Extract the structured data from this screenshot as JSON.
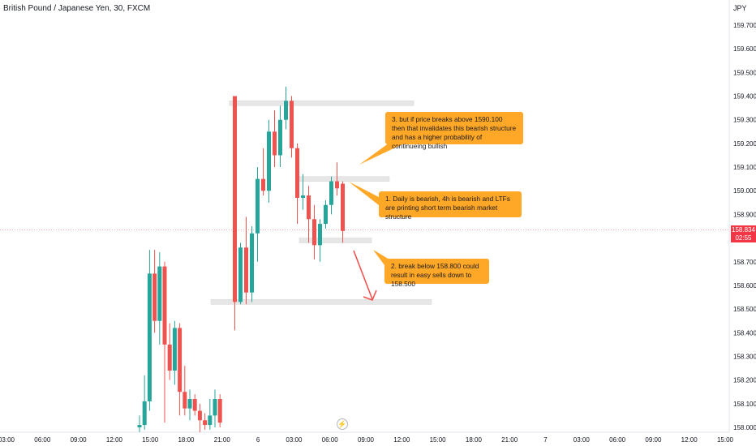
{
  "header": {
    "title": "British Pound / Japanese Yen, 30, FXCM"
  },
  "colors": {
    "up": "#26a69a",
    "down": "#ef5350",
    "zone": "#e6e6e6",
    "note": "#ffa726",
    "price_line": "#f23645",
    "arrow": "#ef5350"
  },
  "icons": {
    "replay": "lightning-bolt-icon"
  },
  "chart_data": {
    "type": "candlestick",
    "title": "British Pound / Japanese Yen, 30, FXCM",
    "y_unit": "JPY",
    "ylim": [
      157.99,
      159.83
    ],
    "y_ticks": [
      "159.700",
      "159.600",
      "159.500",
      "159.400",
      "159.300",
      "159.200",
      "159.100",
      "159.000",
      "158.900",
      "158.800",
      "158.700",
      "158.600",
      "158.500",
      "158.400",
      "158.300",
      "158.200",
      "158.100",
      "158.000"
    ],
    "x_ticks": [
      "03:00",
      "06:00",
      "09:00",
      "12:00",
      "15:00",
      "18:00",
      "21:00",
      "6",
      "03:00",
      "06:00",
      "09:00",
      "12:00",
      "15:00",
      "18:00",
      "21:00",
      "7",
      "03:00",
      "06:00",
      "09:00",
      "12:00",
      "15:00"
    ],
    "candles": [
      {
        "time": "14:00",
        "open": 158.0,
        "high": 158.05,
        "low": 157.98,
        "close": 158.01
      },
      {
        "time": "14:30",
        "open": 158.01,
        "high": 158.22,
        "low": 157.99,
        "close": 158.11
      },
      {
        "time": "15:00",
        "open": 158.11,
        "high": 158.75,
        "low": 158.07,
        "close": 158.65
      },
      {
        "time": "15:30",
        "open": 158.65,
        "high": 158.75,
        "low": 158.4,
        "close": 158.45
      },
      {
        "time": "16:00",
        "open": 158.45,
        "high": 158.74,
        "low": 158.35,
        "close": 158.68
      },
      {
        "time": "16:30",
        "open": 158.68,
        "high": 158.7,
        "low": 158.02,
        "close": 158.35
      },
      {
        "time": "17:00",
        "open": 158.35,
        "high": 158.44,
        "low": 158.2,
        "close": 158.24
      },
      {
        "time": "17:30",
        "open": 158.24,
        "high": 158.45,
        "low": 158.18,
        "close": 158.42
      },
      {
        "time": "18:00",
        "open": 158.42,
        "high": 158.44,
        "low": 158.05,
        "close": 158.15
      },
      {
        "time": "18:30",
        "open": 158.15,
        "high": 158.26,
        "low": 158.05,
        "close": 158.08
      },
      {
        "time": "19:00",
        "open": 158.08,
        "high": 158.16,
        "low": 158.03,
        "close": 158.12
      },
      {
        "time": "19:30",
        "open": 158.12,
        "high": 158.14,
        "low": 158.05,
        "close": 158.07
      },
      {
        "time": "20:00",
        "open": 158.07,
        "high": 158.1,
        "low": 157.98,
        "close": 158.03
      },
      {
        "time": "20:30",
        "open": 158.03,
        "high": 158.06,
        "low": 157.99,
        "close": 158.01
      },
      {
        "time": "21:00",
        "open": 158.01,
        "high": 158.12,
        "low": 157.99,
        "close": 158.05
      },
      {
        "time": "21:30",
        "open": 158.05,
        "high": 158.16,
        "low": 158.0,
        "close": 158.12
      },
      {
        "time": "22:00",
        "open": 158.12,
        "high": 158.14,
        "low": 158.0,
        "close": 158.02
      },
      {
        "time": "23:00",
        "open": 159.4,
        "high": 159.4,
        "low": 158.41,
        "close": 158.53
      },
      {
        "time": "23:30",
        "open": 158.53,
        "high": 158.78,
        "low": 158.52,
        "close": 158.76
      },
      {
        "time": "00:00",
        "open": 158.76,
        "high": 158.89,
        "low": 158.52,
        "close": 158.57
      },
      {
        "time": "00:30",
        "open": 158.57,
        "high": 158.85,
        "low": 158.53,
        "close": 158.82
      },
      {
        "time": "01:00",
        "open": 158.82,
        "high": 159.1,
        "low": 158.7,
        "close": 159.05
      },
      {
        "time": "01:30",
        "open": 159.05,
        "high": 159.18,
        "low": 158.98,
        "close": 159.0
      },
      {
        "time": "02:00",
        "open": 159.0,
        "high": 159.3,
        "low": 158.95,
        "close": 159.25
      },
      {
        "time": "02:30",
        "open": 159.25,
        "high": 159.34,
        "low": 159.1,
        "close": 159.15
      },
      {
        "time": "03:00",
        "open": 159.15,
        "high": 159.36,
        "low": 159.1,
        "close": 159.3
      },
      {
        "time": "03:30",
        "open": 159.3,
        "high": 159.44,
        "low": 159.26,
        "close": 159.38
      },
      {
        "time": "04:00",
        "open": 159.38,
        "high": 159.4,
        "low": 159.14,
        "close": 159.18
      },
      {
        "time": "04:30",
        "open": 159.18,
        "high": 159.2,
        "low": 158.86,
        "close": 158.97
      },
      {
        "time": "05:00",
        "open": 158.97,
        "high": 159.07,
        "low": 158.92,
        "close": 158.98
      },
      {
        "time": "05:30",
        "open": 158.98,
        "high": 159.02,
        "low": 158.78,
        "close": 158.88
      },
      {
        "time": "06:00",
        "open": 158.88,
        "high": 158.94,
        "low": 158.71,
        "close": 158.77
      },
      {
        "time": "06:30",
        "open": 158.77,
        "high": 158.88,
        "low": 158.7,
        "close": 158.86
      },
      {
        "time": "07:00",
        "open": 158.86,
        "high": 158.96,
        "low": 158.84,
        "close": 158.94
      },
      {
        "time": "07:30",
        "open": 158.94,
        "high": 159.06,
        "low": 158.9,
        "close": 159.04
      },
      {
        "time": "08:00",
        "open": 159.04,
        "high": 159.12,
        "low": 158.98,
        "close": 159.01
      },
      {
        "time": "08:30",
        "open": 159.03,
        "high": 159.04,
        "low": 158.78,
        "close": 158.83
      }
    ],
    "current_price": "158.834",
    "countdown": "02:55",
    "zones": [
      159.37,
      159.05,
      158.79,
      158.53
    ],
    "annotations": [
      "3. but if price breaks above 1590.100 then that invalidates this bearish structure and has a higher probability of continueing bullish",
      "1. Daily is bearish, 4h is bearish and LTFs are printing short term bearish market structure",
      "2. break below 158.800 could result in easy sells down to 158.500"
    ]
  },
  "notes": {
    "n3": "3. but if price breaks above 1590.100 then that invalidates this bearish structure and has a higher probability of continueing bullish",
    "n1": "1. Daily is bearish, 4h is bearish and LTFs are printing short term bearish market structure",
    "n2": "2. break below 158.800 could result in easy sells down to 158.500"
  },
  "price_label": {
    "value": "158.834",
    "countdown": "02:55"
  }
}
